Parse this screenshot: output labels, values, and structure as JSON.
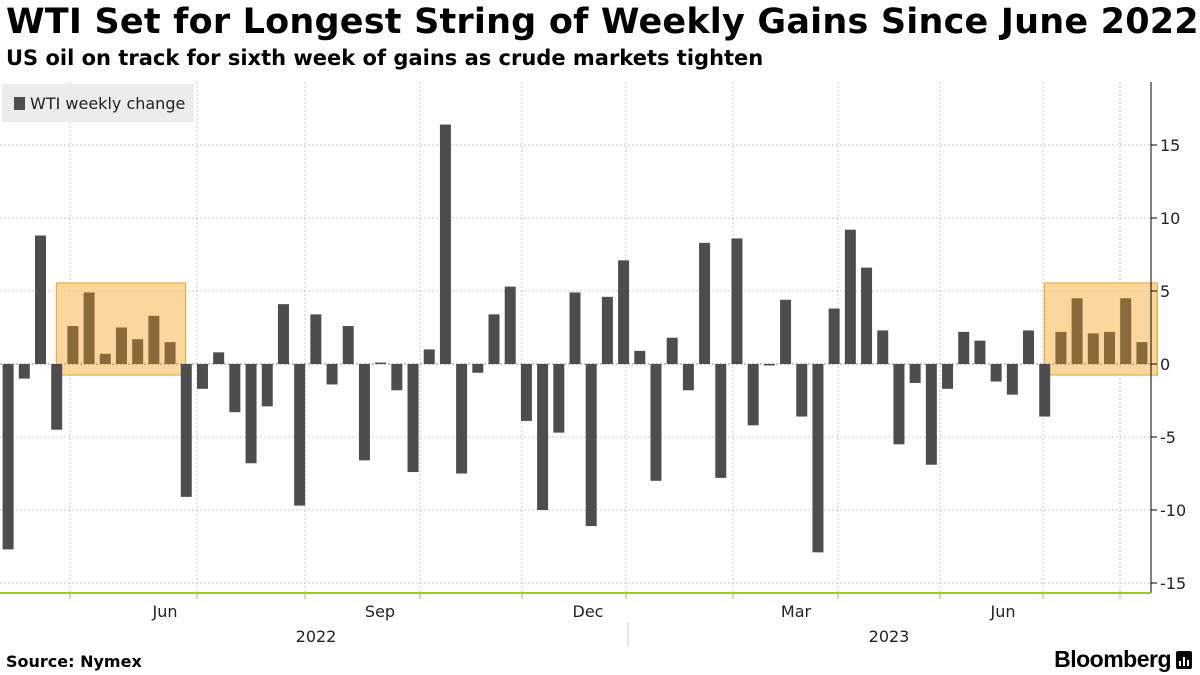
{
  "title": "WTI Set for Longest String of Weekly Gains Since June 2022",
  "subtitle": "US oil on track for sixth week of gains as crude markets tighten",
  "source": "Source: Nymex",
  "brand": "Bloomberg",
  "brand_icon": "bloomberg-bars-icon",
  "colors": {
    "bar": "#4d4d4d",
    "highlight_fill": "#fcd08c",
    "highlight_stroke": "#f2a93b",
    "grid": "#c8c8c8",
    "axis": "#9bcc1e"
  },
  "chart_data": {
    "type": "bar",
    "legend": [
      "WTI weekly change"
    ],
    "legend_position": "top-left",
    "x_month_labels": [
      "Jun",
      "Sep",
      "Dec",
      "Mar",
      "Jun"
    ],
    "x_year_labels": [
      "2022",
      "2023"
    ],
    "y_ticks": [
      "15",
      "10",
      "5",
      "0",
      "-5",
      "-10",
      "-15"
    ],
    "ylim": [
      -15.5,
      19
    ],
    "y_axis_side": "right",
    "grid": true,
    "series": [
      {
        "name": "WTI weekly change",
        "values": [
          -12.7,
          -1.0,
          8.8,
          -4.5,
          2.6,
          4.9,
          0.7,
          2.5,
          1.7,
          3.3,
          1.5,
          -9.1,
          -1.7,
          0.8,
          -3.3,
          -6.8,
          -2.9,
          4.1,
          -9.7,
          3.4,
          -1.4,
          2.6,
          -6.6,
          0.1,
          -1.8,
          -7.4,
          1.0,
          16.4,
          -7.5,
          -0.6,
          3.4,
          5.3,
          -3.9,
          -10.0,
          -4.7,
          4.9,
          -11.1,
          4.6,
          7.1,
          0.9,
          -8.0,
          1.8,
          -1.8,
          8.3,
          -7.8,
          8.6,
          -4.2,
          -0.1,
          4.4,
          -3.6,
          -12.9,
          3.8,
          9.2,
          6.6,
          2.3,
          -5.5,
          -1.3,
          -6.9,
          -1.7,
          2.2,
          1.6,
          -1.2,
          -2.1,
          2.3,
          -3.6,
          2.2,
          4.5,
          2.1,
          2.2,
          4.5,
          1.5
        ]
      }
    ],
    "highlight_ranges": [
      [
        4,
        10
      ],
      [
        65,
        70
      ]
    ]
  }
}
